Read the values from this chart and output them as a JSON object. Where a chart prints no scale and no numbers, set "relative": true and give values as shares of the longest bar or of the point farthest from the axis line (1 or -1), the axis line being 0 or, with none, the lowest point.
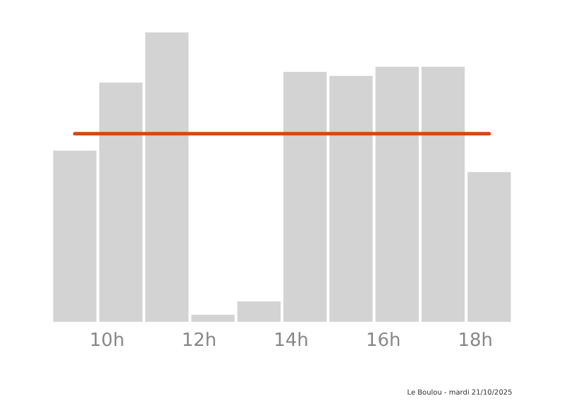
{
  "chart_data": {
    "type": "bar",
    "relative": true,
    "x": [
      9.3,
      10.3,
      11.3,
      12.3,
      13.3,
      14.3,
      15.3,
      16.3,
      17.3,
      18.3
    ],
    "values": [
      0.59,
      0.825,
      1,
      0.023,
      0.069,
      0.862,
      0.848,
      0.88,
      0.88,
      0.516
    ],
    "color": "#d3d3d3",
    "xlim": [
      8.9,
      18.7
    ],
    "xticks": [
      {
        "value": 10,
        "label": "10h"
      },
      {
        "value": 12,
        "label": "12h"
      },
      {
        "value": 14,
        "label": "14h"
      },
      {
        "value": 16,
        "label": "16h"
      },
      {
        "value": 18,
        "label": "18h"
      }
    ],
    "ref_lines": [
      {
        "axis": "y",
        "value": 0.65,
        "color": "#d04a14"
      }
    ],
    "annotations": [
      "Le Boulou - mardi 21/10/2025"
    ],
    "grid": false,
    "legend": false
  }
}
